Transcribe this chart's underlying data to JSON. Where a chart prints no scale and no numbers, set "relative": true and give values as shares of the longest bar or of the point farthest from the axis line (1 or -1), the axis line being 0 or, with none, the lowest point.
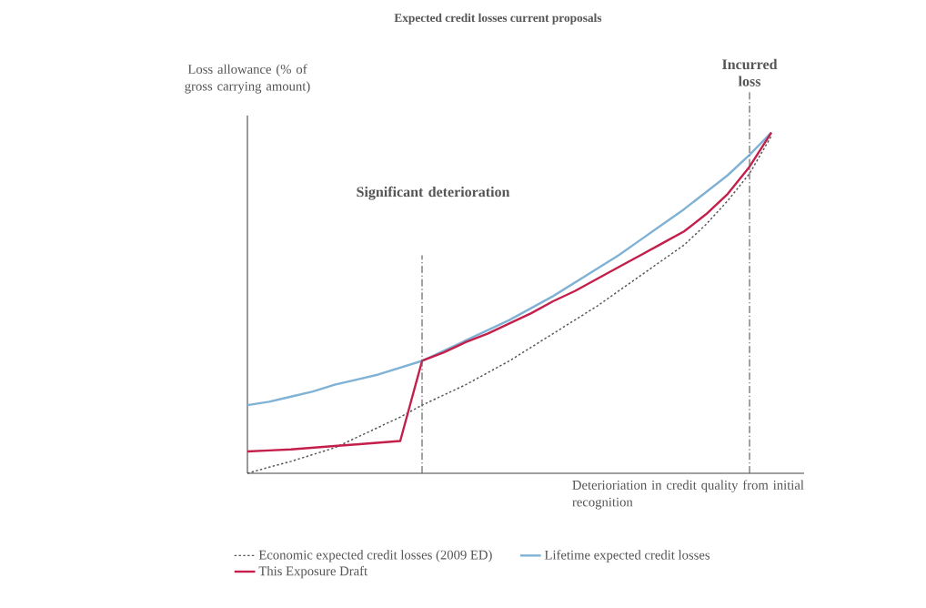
{
  "chart_data": {
    "type": "line",
    "relative": true,
    "title": "Expected credit losses current proposals",
    "ylabel": "Loss allowance (% of gross carrying amount)",
    "xlabel": "Deterioriation in credit quality from initial recognition",
    "categories": [
      null,
      null,
      null,
      null,
      null,
      null,
      null,
      null,
      null,
      null,
      null,
      null,
      null,
      null,
      null,
      null,
      null,
      null,
      null,
      null,
      null,
      null,
      null,
      null,
      null
    ],
    "marker": "none",
    "legend": "bottom",
    "annotations": [
      "Significant deterioration",
      "Incurred loss"
    ],
    "series": [
      {
        "name": "Economic expected credit losses (2009 ED)",
        "color": "#555555",
        "line_style": "dotted",
        "values": [
          0.0,
          0.018,
          0.035,
          0.055,
          0.075,
          0.105,
          0.135,
          0.165,
          0.2,
          0.23,
          0.26,
          0.295,
          0.33,
          0.37,
          0.41,
          0.45,
          0.49,
          0.535,
          0.58,
          0.625,
          0.67,
          0.73,
          0.8,
          0.88,
          0.99
        ]
      },
      {
        "name": "Lifetime expected credit losses",
        "color": "#7fb2d4",
        "line_style": "solid",
        "values": [
          0.2,
          0.21,
          0.225,
          0.24,
          0.26,
          0.275,
          0.29,
          0.31,
          0.33,
          0.36,
          0.39,
          0.42,
          0.45,
          0.485,
          0.52,
          0.56,
          0.6,
          0.64,
          0.685,
          0.73,
          0.775,
          0.825,
          0.875,
          0.935,
          1.0
        ]
      },
      {
        "name": "This Exposure Draft",
        "color": "#c41e4a",
        "line_style": "solid",
        "values": [
          0.064,
          0.067,
          0.07,
          0.075,
          0.08,
          0.085,
          0.09,
          0.095,
          0.33,
          0.355,
          0.385,
          0.41,
          0.44,
          0.47,
          0.505,
          0.535,
          0.57,
          0.605,
          0.64,
          0.675,
          0.71,
          0.76,
          0.82,
          0.9,
          1.0
        ]
      }
    ]
  }
}
